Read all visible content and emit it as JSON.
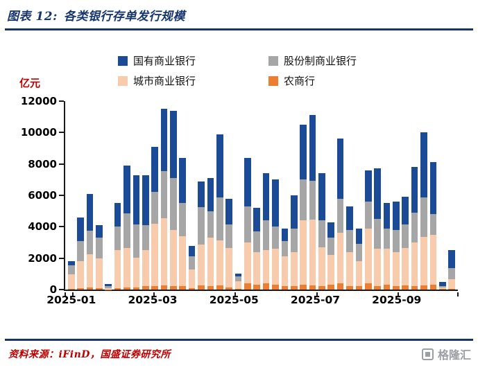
{
  "header": {
    "figure_label": "图表 12:",
    "title": "各类银行存单发行规模"
  },
  "y_axis": {
    "unit_label": "亿元"
  },
  "legend": {
    "items": [
      {
        "label": "国有商业银行",
        "color": "#1B4A97"
      },
      {
        "label": "股份制商业银行",
        "color": "#A6A6A6"
      },
      {
        "label": "城市商业银行",
        "color": "#F8CBAD"
      },
      {
        "label": "农商行",
        "color": "#ED7D31"
      }
    ]
  },
  "chart_data": {
    "type": "bar",
    "stacked": true,
    "title": "各类银行存单发行规模",
    "ylabel": "亿元",
    "ylim": [
      0,
      12000
    ],
    "yticks": [
      0,
      2000,
      4000,
      6000,
      8000,
      10000,
      12000
    ],
    "xticks": [
      {
        "label": "2025-01",
        "center": 0.8
      },
      {
        "label": "2025-03",
        "center": 9.5
      },
      {
        "label": "2025-05",
        "center": 18.2
      },
      {
        "label": "2025-07",
        "center": 26.9
      },
      {
        "label": "2025-09",
        "center": 35.6
      }
    ],
    "stack_order": [
      "农商行",
      "城市商业银行",
      "股份制商业银行",
      "国有商业银行"
    ],
    "series": [
      {
        "name": "国有商业银行",
        "color": "#1B4A97",
        "values": [
          250,
          1500,
          2350,
          800,
          150,
          1500,
          3050,
          3150,
          3200,
          2900,
          3950,
          4300,
          2900,
          700,
          1650,
          2100,
          4050,
          1650,
          150,
          3100,
          1500,
          3000,
          3000,
          800,
          2100,
          3500,
          4150,
          3000,
          1000,
          3800,
          1500,
          1000,
          2000,
          3200,
          1600,
          1800,
          1750,
          2900,
          4150,
          3300,
          300,
          1150
        ]
      },
      {
        "name": "股份制商业银行",
        "color": "#A6A6A6",
        "values": [
          600,
          1300,
          1500,
          1300,
          100,
          1500,
          2200,
          2100,
          1600,
          2000,
          3000,
          3300,
          2100,
          800,
          2400,
          1700,
          2700,
          1500,
          300,
          2300,
          1300,
          1900,
          1400,
          1000,
          1500,
          2600,
          2500,
          1700,
          1100,
          2200,
          1400,
          1100,
          1700,
          1900,
          1300,
          1400,
          1500,
          1900,
          2500,
          1300,
          70,
          700
        ]
      },
      {
        "name": "城市商业银行",
        "color": "#F8CBAD",
        "values": [
          900,
          1700,
          2100,
          1900,
          80,
          2400,
          2500,
          1900,
          2300,
          4000,
          4300,
          3600,
          3200,
          1200,
          2600,
          3100,
          2900,
          2500,
          500,
          2600,
          2100,
          2100,
          2300,
          1900,
          2200,
          4100,
          4200,
          2500,
          1900,
          3200,
          2200,
          1600,
          3500,
          2400,
          2300,
          2200,
          2400,
          2800,
          3100,
          3200,
          100,
          600
        ]
      },
      {
        "name": "农商行",
        "color": "#ED7D31",
        "values": [
          50,
          100,
          150,
          100,
          20,
          100,
          150,
          150,
          200,
          200,
          250,
          200,
          200,
          100,
          250,
          200,
          250,
          150,
          50,
          400,
          300,
          400,
          300,
          200,
          200,
          300,
          250,
          200,
          300,
          400,
          200,
          200,
          400,
          200,
          300,
          200,
          250,
          200,
          250,
          300,
          30,
          50
        ]
      }
    ]
  },
  "footer": {
    "source": "资料来源：iFinD，国盛证券研究所"
  },
  "watermark": {
    "text": "格隆汇"
  }
}
